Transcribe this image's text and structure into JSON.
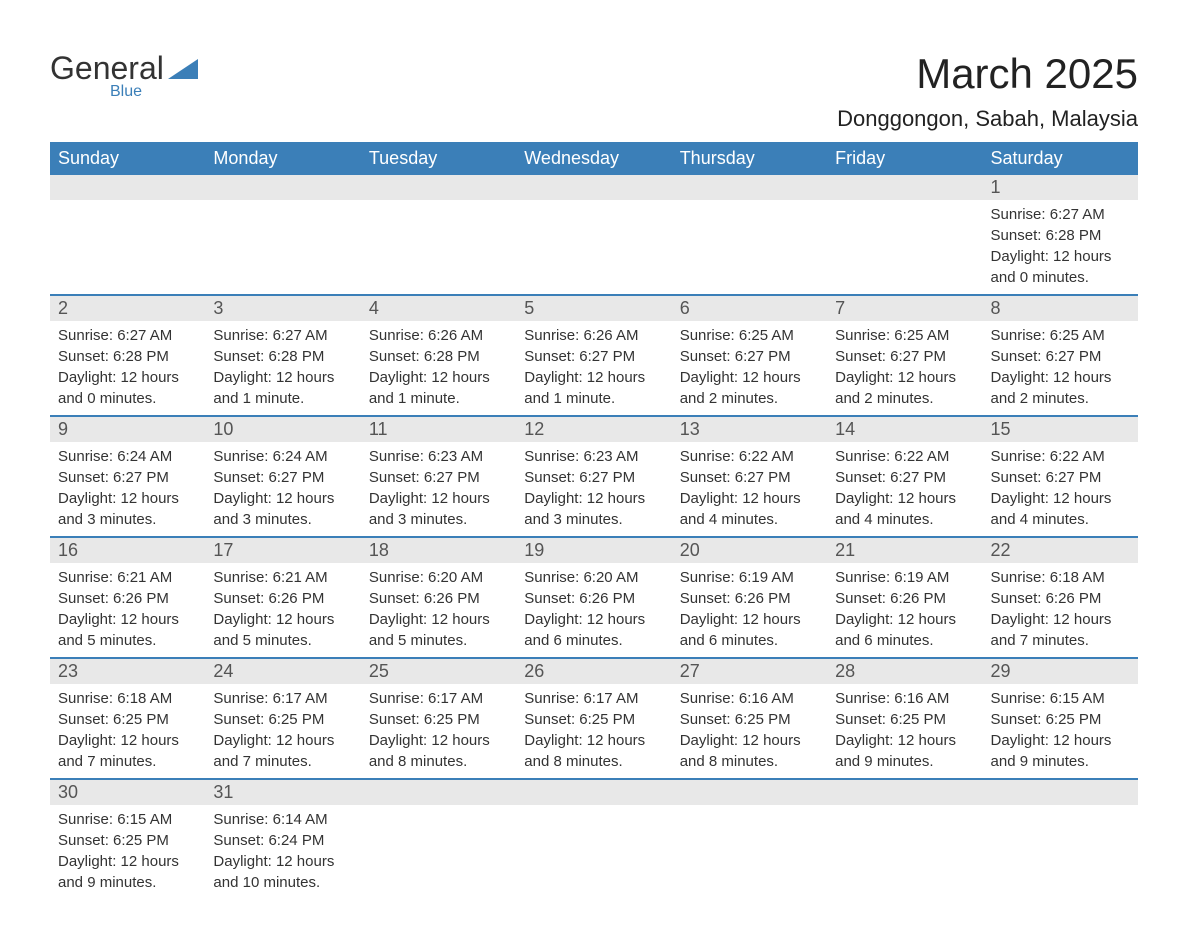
{
  "logo": {
    "word1": "General",
    "word2": "Blue"
  },
  "title": "March 2025",
  "location": "Donggongon, Sabah, Malaysia",
  "colors": {
    "header_bg": "#3b7fb8",
    "header_text": "#ffffff",
    "daynum_bg": "#e8e8e8",
    "border": "#3b7fb8",
    "text": "#333333"
  },
  "typography": {
    "title_fontsize": 42,
    "location_fontsize": 22,
    "th_fontsize": 18,
    "daynum_fontsize": 18,
    "cell_fontsize": 15
  },
  "day_headers": [
    "Sunday",
    "Monday",
    "Tuesday",
    "Wednesday",
    "Thursday",
    "Friday",
    "Saturday"
  ],
  "weeks": [
    [
      null,
      null,
      null,
      null,
      null,
      null,
      {
        "n": "1",
        "sr": "Sunrise: 6:27 AM",
        "ss": "Sunset: 6:28 PM",
        "dl1": "Daylight: 12 hours",
        "dl2": "and 0 minutes."
      }
    ],
    [
      {
        "n": "2",
        "sr": "Sunrise: 6:27 AM",
        "ss": "Sunset: 6:28 PM",
        "dl1": "Daylight: 12 hours",
        "dl2": "and 0 minutes."
      },
      {
        "n": "3",
        "sr": "Sunrise: 6:27 AM",
        "ss": "Sunset: 6:28 PM",
        "dl1": "Daylight: 12 hours",
        "dl2": "and 1 minute."
      },
      {
        "n": "4",
        "sr": "Sunrise: 6:26 AM",
        "ss": "Sunset: 6:28 PM",
        "dl1": "Daylight: 12 hours",
        "dl2": "and 1 minute."
      },
      {
        "n": "5",
        "sr": "Sunrise: 6:26 AM",
        "ss": "Sunset: 6:27 PM",
        "dl1": "Daylight: 12 hours",
        "dl2": "and 1 minute."
      },
      {
        "n": "6",
        "sr": "Sunrise: 6:25 AM",
        "ss": "Sunset: 6:27 PM",
        "dl1": "Daylight: 12 hours",
        "dl2": "and 2 minutes."
      },
      {
        "n": "7",
        "sr": "Sunrise: 6:25 AM",
        "ss": "Sunset: 6:27 PM",
        "dl1": "Daylight: 12 hours",
        "dl2": "and 2 minutes."
      },
      {
        "n": "8",
        "sr": "Sunrise: 6:25 AM",
        "ss": "Sunset: 6:27 PM",
        "dl1": "Daylight: 12 hours",
        "dl2": "and 2 minutes."
      }
    ],
    [
      {
        "n": "9",
        "sr": "Sunrise: 6:24 AM",
        "ss": "Sunset: 6:27 PM",
        "dl1": "Daylight: 12 hours",
        "dl2": "and 3 minutes."
      },
      {
        "n": "10",
        "sr": "Sunrise: 6:24 AM",
        "ss": "Sunset: 6:27 PM",
        "dl1": "Daylight: 12 hours",
        "dl2": "and 3 minutes."
      },
      {
        "n": "11",
        "sr": "Sunrise: 6:23 AM",
        "ss": "Sunset: 6:27 PM",
        "dl1": "Daylight: 12 hours",
        "dl2": "and 3 minutes."
      },
      {
        "n": "12",
        "sr": "Sunrise: 6:23 AM",
        "ss": "Sunset: 6:27 PM",
        "dl1": "Daylight: 12 hours",
        "dl2": "and 3 minutes."
      },
      {
        "n": "13",
        "sr": "Sunrise: 6:22 AM",
        "ss": "Sunset: 6:27 PM",
        "dl1": "Daylight: 12 hours",
        "dl2": "and 4 minutes."
      },
      {
        "n": "14",
        "sr": "Sunrise: 6:22 AM",
        "ss": "Sunset: 6:27 PM",
        "dl1": "Daylight: 12 hours",
        "dl2": "and 4 minutes."
      },
      {
        "n": "15",
        "sr": "Sunrise: 6:22 AM",
        "ss": "Sunset: 6:27 PM",
        "dl1": "Daylight: 12 hours",
        "dl2": "and 4 minutes."
      }
    ],
    [
      {
        "n": "16",
        "sr": "Sunrise: 6:21 AM",
        "ss": "Sunset: 6:26 PM",
        "dl1": "Daylight: 12 hours",
        "dl2": "and 5 minutes."
      },
      {
        "n": "17",
        "sr": "Sunrise: 6:21 AM",
        "ss": "Sunset: 6:26 PM",
        "dl1": "Daylight: 12 hours",
        "dl2": "and 5 minutes."
      },
      {
        "n": "18",
        "sr": "Sunrise: 6:20 AM",
        "ss": "Sunset: 6:26 PM",
        "dl1": "Daylight: 12 hours",
        "dl2": "and 5 minutes."
      },
      {
        "n": "19",
        "sr": "Sunrise: 6:20 AM",
        "ss": "Sunset: 6:26 PM",
        "dl1": "Daylight: 12 hours",
        "dl2": "and 6 minutes."
      },
      {
        "n": "20",
        "sr": "Sunrise: 6:19 AM",
        "ss": "Sunset: 6:26 PM",
        "dl1": "Daylight: 12 hours",
        "dl2": "and 6 minutes."
      },
      {
        "n": "21",
        "sr": "Sunrise: 6:19 AM",
        "ss": "Sunset: 6:26 PM",
        "dl1": "Daylight: 12 hours",
        "dl2": "and 6 minutes."
      },
      {
        "n": "22",
        "sr": "Sunrise: 6:18 AM",
        "ss": "Sunset: 6:26 PM",
        "dl1": "Daylight: 12 hours",
        "dl2": "and 7 minutes."
      }
    ],
    [
      {
        "n": "23",
        "sr": "Sunrise: 6:18 AM",
        "ss": "Sunset: 6:25 PM",
        "dl1": "Daylight: 12 hours",
        "dl2": "and 7 minutes."
      },
      {
        "n": "24",
        "sr": "Sunrise: 6:17 AM",
        "ss": "Sunset: 6:25 PM",
        "dl1": "Daylight: 12 hours",
        "dl2": "and 7 minutes."
      },
      {
        "n": "25",
        "sr": "Sunrise: 6:17 AM",
        "ss": "Sunset: 6:25 PM",
        "dl1": "Daylight: 12 hours",
        "dl2": "and 8 minutes."
      },
      {
        "n": "26",
        "sr": "Sunrise: 6:17 AM",
        "ss": "Sunset: 6:25 PM",
        "dl1": "Daylight: 12 hours",
        "dl2": "and 8 minutes."
      },
      {
        "n": "27",
        "sr": "Sunrise: 6:16 AM",
        "ss": "Sunset: 6:25 PM",
        "dl1": "Daylight: 12 hours",
        "dl2": "and 8 minutes."
      },
      {
        "n": "28",
        "sr": "Sunrise: 6:16 AM",
        "ss": "Sunset: 6:25 PM",
        "dl1": "Daylight: 12 hours",
        "dl2": "and 9 minutes."
      },
      {
        "n": "29",
        "sr": "Sunrise: 6:15 AM",
        "ss": "Sunset: 6:25 PM",
        "dl1": "Daylight: 12 hours",
        "dl2": "and 9 minutes."
      }
    ],
    [
      {
        "n": "30",
        "sr": "Sunrise: 6:15 AM",
        "ss": "Sunset: 6:25 PM",
        "dl1": "Daylight: 12 hours",
        "dl2": "and 9 minutes."
      },
      {
        "n": "31",
        "sr": "Sunrise: 6:14 AM",
        "ss": "Sunset: 6:24 PM",
        "dl1": "Daylight: 12 hours",
        "dl2": "and 10 minutes."
      },
      null,
      null,
      null,
      null,
      null
    ]
  ]
}
